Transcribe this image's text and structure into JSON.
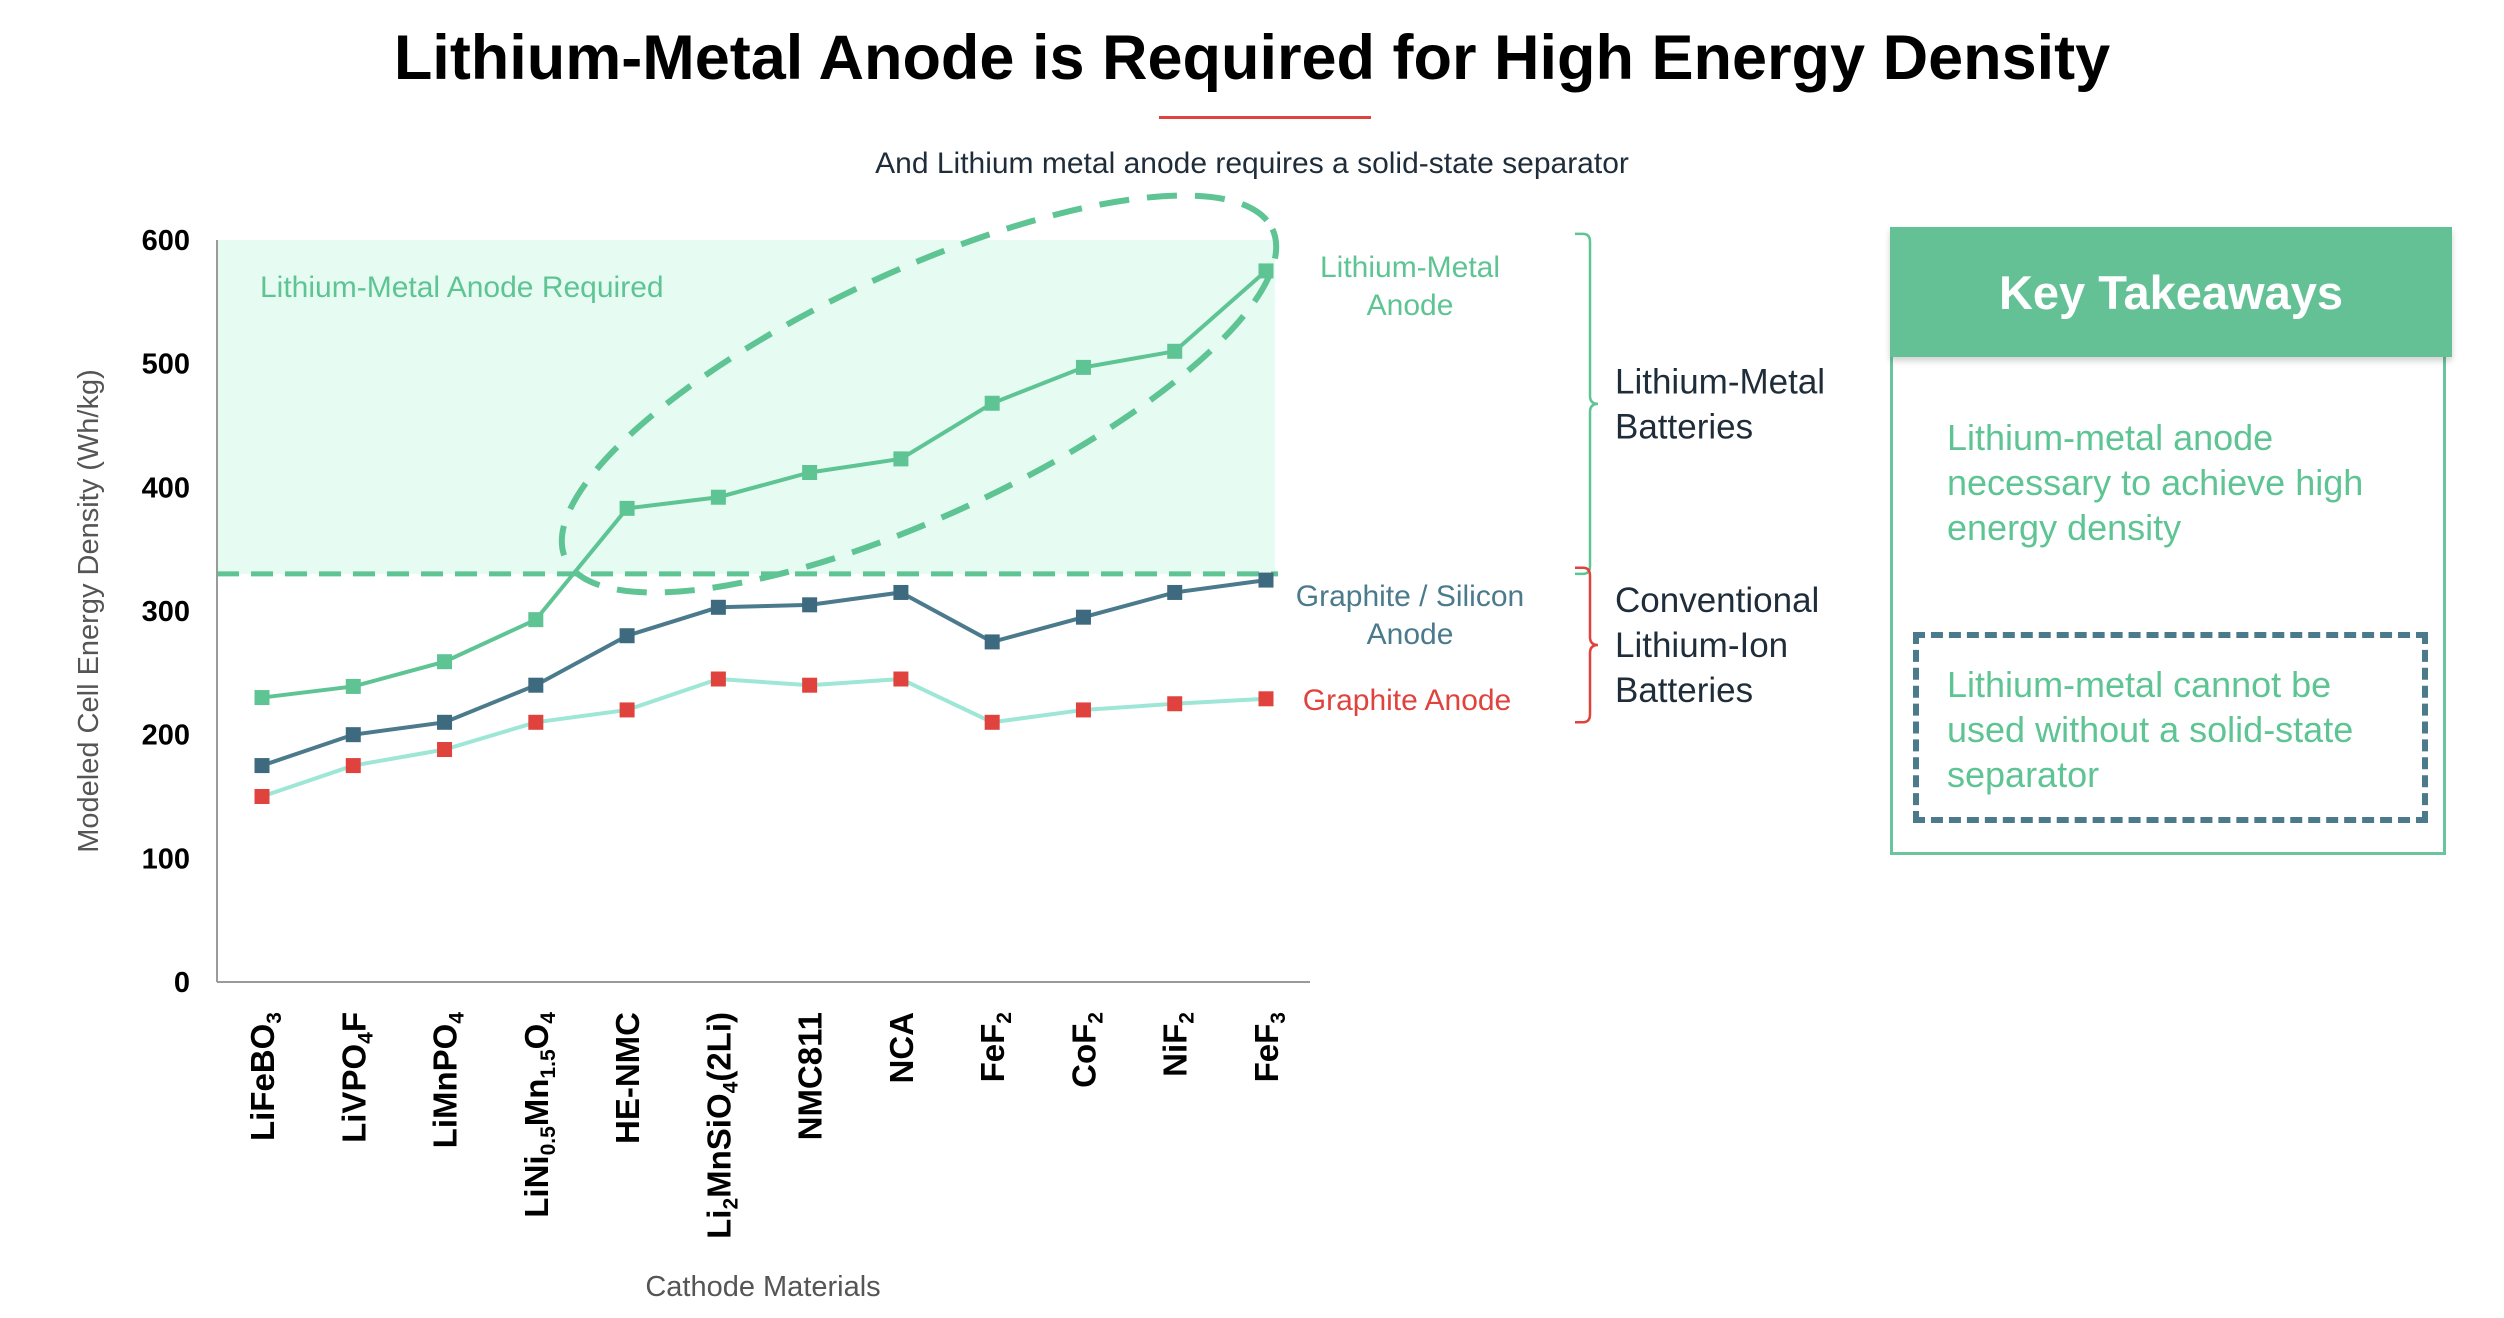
{
  "title": "Lithium-Metal Anode is Required for High Energy Density",
  "subtitle": "And Lithium metal anode requires a solid-state separator",
  "chart_data": {
    "type": "line",
    "xlabel": "Cathode Materials",
    "ylabel": "Modeled Cell Energy Density (Wh/kg)",
    "ylim": [
      0,
      600
    ],
    "yticks": [
      0,
      100,
      200,
      300,
      400,
      500,
      600
    ],
    "grid": false,
    "categories": [
      [
        {
          "t": "LiFeBO"
        },
        {
          "t": "3",
          "sub": true
        }
      ],
      [
        {
          "t": "LiVPO"
        },
        {
          "t": "4",
          "sub": true
        },
        {
          "t": "F"
        }
      ],
      [
        {
          "t": "LiMnPO"
        },
        {
          "t": "4",
          "sub": true
        }
      ],
      [
        {
          "t": "LiNi"
        },
        {
          "t": "0.5",
          "sub": true
        },
        {
          "t": "Mn"
        },
        {
          "t": "1.5",
          "sub": true
        },
        {
          "t": "O"
        },
        {
          "t": "4",
          "sub": true
        }
      ],
      [
        {
          "t": "HE-NMC"
        }
      ],
      [
        {
          "t": "Li"
        },
        {
          "t": "2",
          "sub": true
        },
        {
          "t": "MnSiO"
        },
        {
          "t": "4",
          "sub": true
        },
        {
          "t": "(2Li)"
        }
      ],
      [
        {
          "t": "NMC811"
        }
      ],
      [
        {
          "t": "NCA"
        }
      ],
      [
        {
          "t": "FeF"
        },
        {
          "t": "2",
          "sub": true
        }
      ],
      [
        {
          "t": "CoF"
        },
        {
          "t": "2",
          "sub": true
        }
      ],
      [
        {
          "t": "NiF"
        },
        {
          "t": "2",
          "sub": true
        }
      ],
      [
        {
          "t": "FeF"
        },
        {
          "t": "3",
          "sub": true
        }
      ]
    ],
    "series": [
      {
        "name": "Lithium-Metal Anode",
        "label_lines": [
          "Lithium-Metal",
          "Anode"
        ],
        "line_color": "#5ec493",
        "marker_color": "#5ec493",
        "values": [
          230,
          239,
          259,
          293,
          383,
          392,
          412,
          423,
          468,
          497,
          510,
          575
        ]
      },
      {
        "name": "Graphite / Silicon Anode",
        "label_lines": [
          "Graphite / Silicon",
          "Anode"
        ],
        "line_color": "#4a7a8c",
        "marker_color": "#3d6a7e",
        "values": [
          175,
          200,
          210,
          240,
          280,
          303,
          305,
          315,
          275,
          295,
          315,
          325
        ]
      },
      {
        "name": "Graphite Anode",
        "label_lines": [
          "Graphite Anode"
        ],
        "line_color": "#9ee6d6",
        "marker_color": "#e0433d",
        "values": [
          150,
          175,
          188,
          210,
          220,
          245,
          240,
          245,
          210,
          220,
          225,
          229
        ]
      }
    ],
    "threshold": 330,
    "region_label": "Lithium-Metal Anode Required",
    "groups": [
      {
        "name": "Lithium-Metal Batteries",
        "lines": [
          "Lithium-Metal",
          "Batteries"
        ],
        "range": [
          330,
          605
        ],
        "color": "#5ec493"
      },
      {
        "name": "Conventional Lithium-Ion Batteries",
        "lines": [
          "Conventional",
          "Lithium-Ion",
          "Batteries"
        ],
        "range": [
          210,
          335
        ],
        "color": "#e0433d"
      }
    ],
    "colors": {
      "region": "#e6fcf3",
      "threshold": "#5ec493",
      "axis": "#9a9a9a",
      "group_text": "#1f2d3a"
    }
  },
  "takeaways": {
    "header": "Key Takeaways",
    "item1": "Lithium-metal anode necessary to achieve high energy density",
    "item2": "Lithium-metal cannot be used without a solid-state separator",
    "colors": {
      "header_bg": "#63c195",
      "text": "#5ec493",
      "dashed_border": "#4a7a8c"
    }
  }
}
